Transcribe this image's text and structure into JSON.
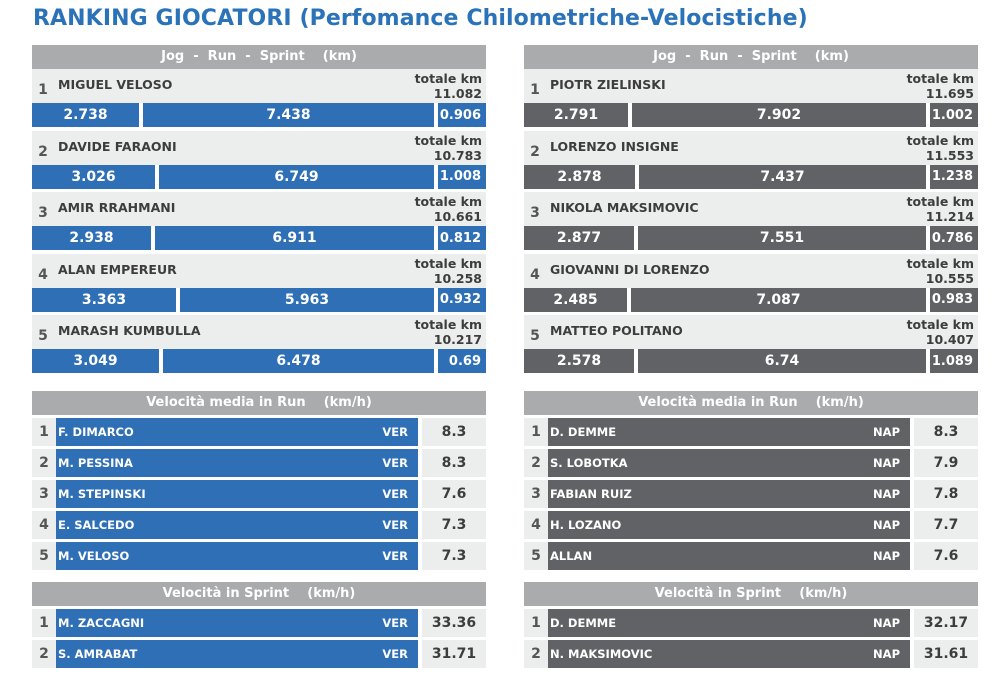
{
  "title": "RANKING GIOCATORI (Perfomance Chilometriche-Velocistiche)",
  "km_section": {
    "header": "Jog  -  Run  -  Sprint    (km)",
    "total_label": "totale km",
    "left": [
      {
        "rank": "1",
        "name": "MIGUEL VELOSO",
        "total": "11.082",
        "jog": "2.738",
        "run": "7.438",
        "sprint": "0.906"
      },
      {
        "rank": "2",
        "name": "DAVIDE FARAONI",
        "total": "10.783",
        "jog": "3.026",
        "run": "6.749",
        "sprint": "1.008"
      },
      {
        "rank": "3",
        "name": "AMIR RRAHMANI",
        "total": "10.661",
        "jog": "2.938",
        "run": "6.911",
        "sprint": "0.812"
      },
      {
        "rank": "4",
        "name": "ALAN EMPEREUR",
        "total": "10.258",
        "jog": "3.363",
        "run": "5.963",
        "sprint": "0.932"
      },
      {
        "rank": "5",
        "name": "MARASH KUMBULLA",
        "total": "10.217",
        "jog": "3.049",
        "run": "6.478",
        "sprint": "0.69"
      }
    ],
    "right": [
      {
        "rank": "1",
        "name": "PIOTR ZIELINSKI",
        "total": "11.695",
        "jog": "2.791",
        "run": "7.902",
        "sprint": "1.002"
      },
      {
        "rank": "2",
        "name": "LORENZO INSIGNE",
        "total": "11.553",
        "jog": "2.878",
        "run": "7.437",
        "sprint": "1.238"
      },
      {
        "rank": "3",
        "name": "NIKOLA MAKSIMOVIC",
        "total": "11.214",
        "jog": "2.877",
        "run": "7.551",
        "sprint": "0.786"
      },
      {
        "rank": "4",
        "name": "GIOVANNI DI LORENZO",
        "total": "10.555",
        "jog": "2.485",
        "run": "7.087",
        "sprint": "0.983"
      },
      {
        "rank": "5",
        "name": "MATTEO POLITANO",
        "total": "10.407",
        "jog": "2.578",
        "run": "6.74",
        "sprint": "1.089"
      }
    ]
  },
  "run_speed": {
    "header": "Velocità media in Run    (km/h)",
    "left": [
      {
        "rank": "1",
        "name": "F. DIMARCO",
        "team": "VER",
        "value": "8.3"
      },
      {
        "rank": "2",
        "name": "M. PESSINA",
        "team": "VER",
        "value": "8.3"
      },
      {
        "rank": "3",
        "name": "M. STEPINSKI",
        "team": "VER",
        "value": "7.6"
      },
      {
        "rank": "4",
        "name": "E. SALCEDO",
        "team": "VER",
        "value": "7.3"
      },
      {
        "rank": "5",
        "name": "M. VELOSO",
        "team": "VER",
        "value": "7.3"
      }
    ],
    "right": [
      {
        "rank": "1",
        "name": "D. DEMME",
        "team": "NAP",
        "value": "8.3"
      },
      {
        "rank": "2",
        "name": "S. LOBOTKA",
        "team": "NAP",
        "value": "7.9"
      },
      {
        "rank": "3",
        "name": "FABIAN RUIZ",
        "team": "NAP",
        "value": "7.8"
      },
      {
        "rank": "4",
        "name": "H. LOZANO",
        "team": "NAP",
        "value": "7.7"
      },
      {
        "rank": "5",
        "name": "ALLAN",
        "team": "NAP",
        "value": "7.6"
      }
    ]
  },
  "sprint_speed": {
    "header": "Velocità in Sprint    (km/h)",
    "left": [
      {
        "rank": "1",
        "name": "M. ZACCAGNI",
        "team": "VER",
        "value": "33.36"
      },
      {
        "rank": "2",
        "name": "S. AMRABAT",
        "team": "VER",
        "value": "31.71"
      }
    ],
    "right": [
      {
        "rank": "1",
        "name": "D. DEMME",
        "team": "NAP",
        "value": "32.17"
      },
      {
        "rank": "2",
        "name": "N. MAKSIMOVIC",
        "team": "NAP",
        "value": "31.61"
      }
    ]
  },
  "colors": {
    "left_team": "#2e6fb5",
    "right_team": "#606265",
    "header": "#a9abad",
    "title": "#2b73b8"
  }
}
